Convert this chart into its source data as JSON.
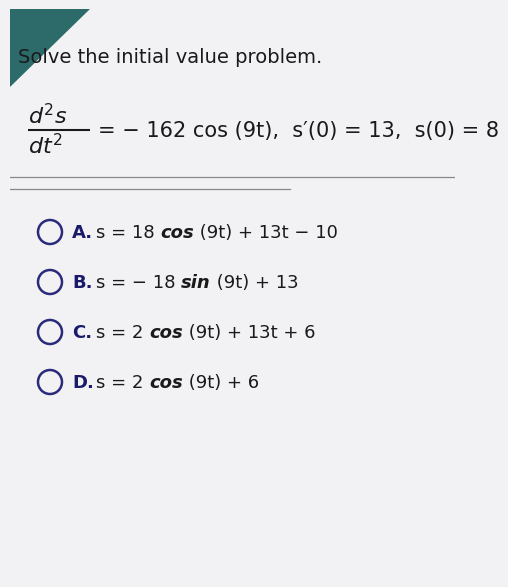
{
  "bg_top_color": "#2d6b6b",
  "paper_color": "#f2f2f5",
  "title": "Solve the initial value problem.",
  "title_fontsize": 14,
  "title_color": "#1a1a1a",
  "eq_color": "#1a1a1a",
  "eq_fontsize": 16,
  "eq_rhs": "= − 162 cos (9t),  s′(0) = 13,  s(0) = 8",
  "separator_color": "#888888",
  "options": [
    {
      "label": "A.",
      "normal1": "s = 18 ",
      "bold": "cos",
      "normal2": " (9t) + 13t − 10"
    },
    {
      "label": "B.",
      "normal1": "s = − 18 ",
      "bold": "sin",
      "normal2": " (9t) + 13"
    },
    {
      "label": "C.",
      "normal1": "s = 2 ",
      "bold": "cos",
      "normal2": " (9t) + 13t + 6"
    },
    {
      "label": "D.",
      "normal1": "s = 2 ",
      "bold": "cos",
      "normal2": " (9t) + 6"
    }
  ],
  "option_fontsize": 13,
  "label_fontsize": 13,
  "circle_color": "#2a2a7a",
  "label_color": "#1a1a6a",
  "text_color": "#1a1a1a"
}
